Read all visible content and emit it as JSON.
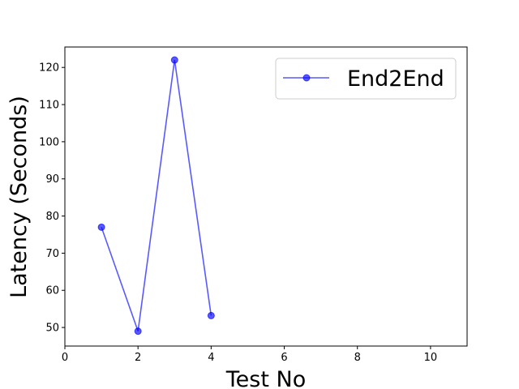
{
  "chart_data": {
    "type": "line",
    "title": "",
    "xlabel": "Test No",
    "ylabel": "Latency (Seconds)",
    "xlim": [
      0,
      11
    ],
    "ylim": [
      45,
      125.5
    ],
    "xticks": [
      0,
      2,
      4,
      6,
      8,
      10
    ],
    "yticks": [
      50,
      60,
      70,
      80,
      90,
      100,
      110,
      120
    ],
    "grid": false,
    "legend_position": "top-right",
    "series": [
      {
        "name": "End2End",
        "color": "#0000ff",
        "marker": "circle",
        "x": [
          1,
          2,
          3,
          4
        ],
        "y": [
          77,
          49,
          122,
          53.2
        ]
      }
    ]
  }
}
